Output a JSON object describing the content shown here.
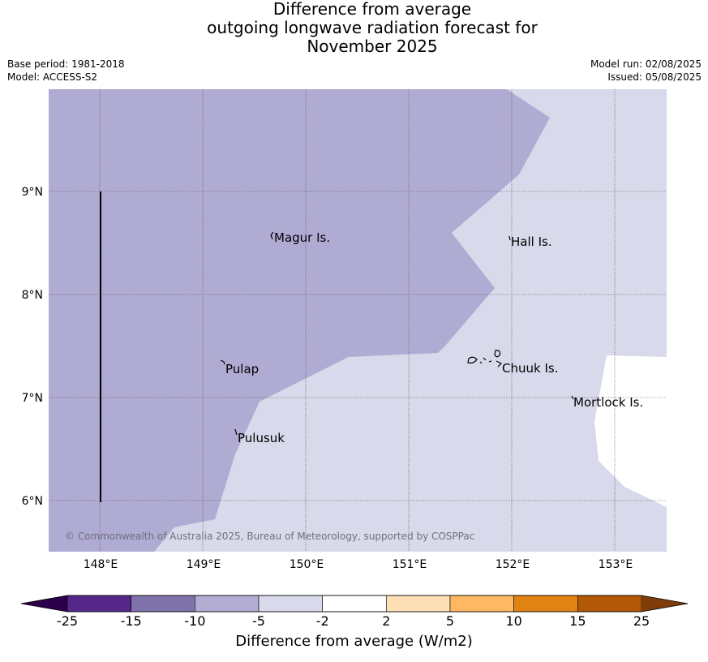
{
  "title": {
    "line1": "Difference from average",
    "line2": "outgoing longwave radiation forecast for",
    "line3": "November 2025"
  },
  "meta": {
    "base_period": "Base period: 1981-2018",
    "model": "Model: ACCESS-S2",
    "model_run": "Model run: 02/08/2025",
    "issued": "Issued: 05/08/2025"
  },
  "map": {
    "lon_ticks": [
      "148°E",
      "149°E",
      "150°E",
      "151°E",
      "152°E",
      "153°E"
    ],
    "lat_ticks": [
      "9°N",
      "8°N",
      "7°N",
      "6°N"
    ],
    "places": [
      "Magur Is.",
      "Hall Is.",
      "Pulap",
      "Chuuk Is.",
      "Mortlock Is.",
      "Pulusuk"
    ],
    "copyright": "© Commonwealth of Australia 2025, Bureau of Meteorology, supported by COSPPac",
    "colors": {
      "minus10_to_minus5": "#b0abd3",
      "minus5_to_minus2": "#d8d9ea",
      "minus2_to_2": "#ffffff",
      "gridline": "#555555",
      "coast": "#000000"
    }
  },
  "colorbar": {
    "ticks": [
      "-25",
      "-15",
      "-10",
      "-5",
      "-2",
      "2",
      "5",
      "10",
      "15",
      "25"
    ],
    "colors": [
      "#542788",
      "#8073ac",
      "#b2abd2",
      "#d8daeb",
      "#ffffff",
      "#fee0b6",
      "#fdb863",
      "#e08214",
      "#b35806"
    ],
    "under_color": "#2d004b",
    "over_color": "#7f3b08",
    "label": "Difference from average (W/m2)"
  }
}
